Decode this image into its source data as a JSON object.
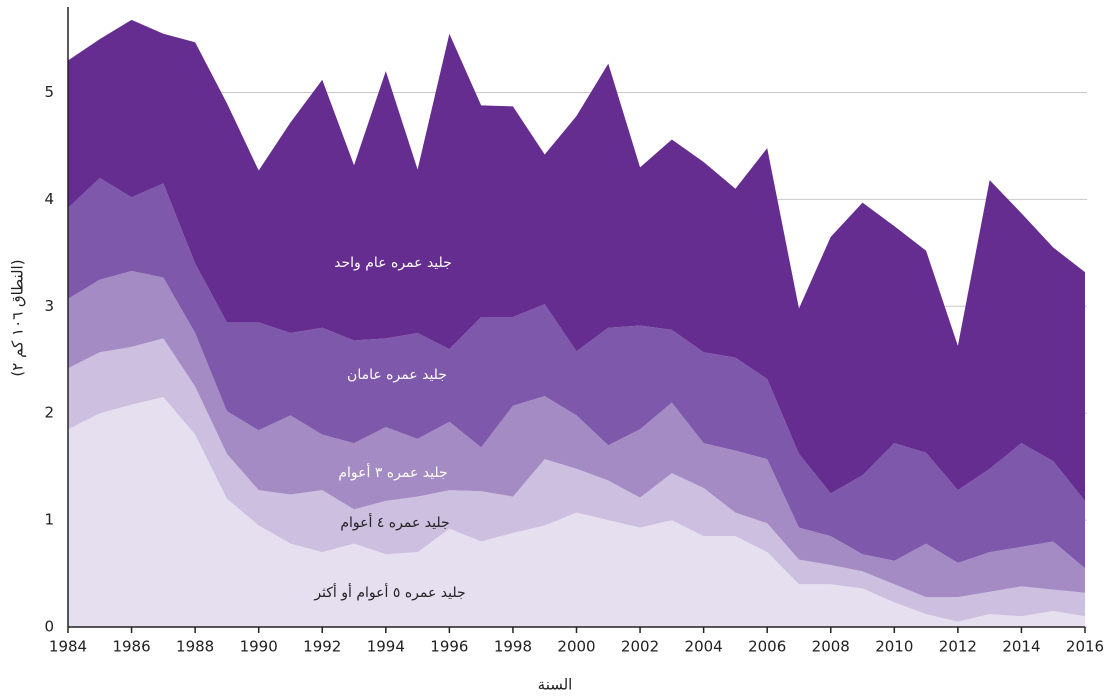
{
  "chart_data": {
    "type": "area",
    "stacked": true,
    "x_label": "السنة",
    "y_label": "(النطاق ١٠٦ كم ٢)",
    "x": [
      1984,
      1985,
      1986,
      1987,
      1988,
      1989,
      1990,
      1991,
      1992,
      1993,
      1994,
      1995,
      1996,
      1997,
      1998,
      1999,
      2000,
      2001,
      2002,
      2003,
      2004,
      2005,
      2006,
      2007,
      2008,
      2009,
      2010,
      2011,
      2012,
      2013,
      2014,
      2015,
      2016
    ],
    "series": [
      {
        "name": "جليد عمره ٥ أعوام أو أكثر",
        "color": "#e6dff0",
        "values": [
          1.85,
          2.0,
          2.08,
          2.15,
          1.8,
          1.2,
          0.95,
          0.78,
          0.7,
          0.78,
          0.68,
          0.7,
          0.92,
          0.8,
          0.88,
          0.95,
          1.07,
          1.0,
          0.93,
          1.0,
          0.85,
          0.85,
          0.7,
          0.4,
          0.4,
          0.36,
          0.23,
          0.12,
          0.05,
          0.12,
          0.1,
          0.15,
          0.1
        ]
      },
      {
        "name": "جليد عمره ٤ أعوام",
        "color": "#cdbfe0",
        "values": [
          0.57,
          0.57,
          0.54,
          0.55,
          0.45,
          0.42,
          0.33,
          0.46,
          0.58,
          0.32,
          0.5,
          0.52,
          0.36,
          0.47,
          0.34,
          0.62,
          0.41,
          0.37,
          0.28,
          0.44,
          0.45,
          0.22,
          0.27,
          0.23,
          0.18,
          0.16,
          0.17,
          0.16,
          0.23,
          0.21,
          0.28,
          0.2,
          0.22
        ]
      },
      {
        "name": "جليد عمره ٣ أعوام",
        "color": "#a48bc4",
        "values": [
          0.65,
          0.68,
          0.71,
          0.57,
          0.5,
          0.4,
          0.56,
          0.74,
          0.52,
          0.62,
          0.69,
          0.54,
          0.64,
          0.41,
          0.85,
          0.59,
          0.5,
          0.33,
          0.64,
          0.66,
          0.42,
          0.58,
          0.6,
          0.3,
          0.27,
          0.16,
          0.22,
          0.5,
          0.32,
          0.37,
          0.37,
          0.45,
          0.23
        ]
      },
      {
        "name": "جليد عمره عامان",
        "color": "#7e58ab",
        "values": [
          0.85,
          0.95,
          0.69,
          0.88,
          0.65,
          0.83,
          1.01,
          0.77,
          1.0,
          0.96,
          0.83,
          0.99,
          0.68,
          1.22,
          0.83,
          0.86,
          0.6,
          1.1,
          0.97,
          0.68,
          0.85,
          0.87,
          0.75,
          0.69,
          0.4,
          0.74,
          1.1,
          0.85,
          0.68,
          0.78,
          0.97,
          0.75,
          0.63
        ]
      },
      {
        "name": "جليد عمره عام واحد",
        "color": "#652d90",
        "values": [
          1.38,
          1.3,
          1.66,
          1.4,
          2.07,
          2.05,
          1.42,
          1.97,
          2.32,
          1.64,
          2.5,
          1.53,
          2.95,
          1.98,
          1.97,
          1.4,
          2.2,
          2.47,
          1.48,
          1.78,
          1.78,
          1.58,
          2.16,
          1.36,
          2.4,
          2.55,
          2.03,
          1.89,
          1.35,
          2.7,
          2.15,
          2.0,
          2.14
        ]
      }
    ],
    "xlim": [
      1984,
      2016
    ],
    "xticks": [
      1984,
      1986,
      1988,
      1990,
      1992,
      1994,
      1996,
      1998,
      2000,
      2002,
      2004,
      2006,
      2008,
      2010,
      2012,
      2014,
      2016
    ],
    "ylim": [
      0,
      5.8
    ],
    "yticks": [
      0,
      1,
      2,
      3,
      4,
      5
    ],
    "grid": true
  }
}
